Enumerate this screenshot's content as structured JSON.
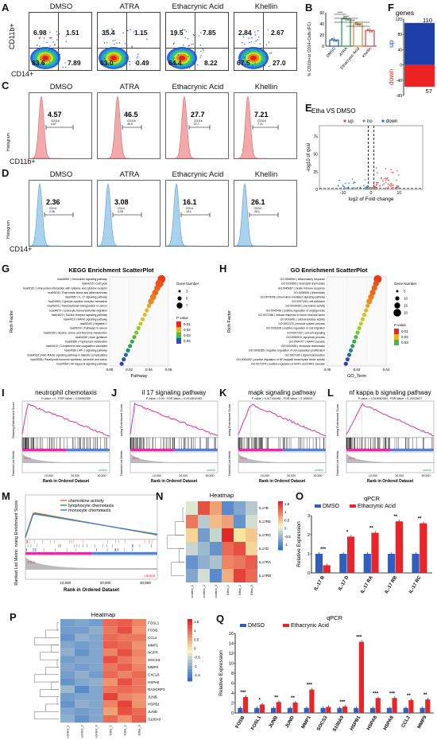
{
  "panel_labels": [
    "A",
    "B",
    "C",
    "D",
    "E",
    "F",
    "G",
    "H",
    "I",
    "J",
    "K",
    "L",
    "M",
    "N",
    "O",
    "P",
    "Q"
  ],
  "conditions": [
    "DMSO",
    "ATRA",
    "Ethacrynic Acid",
    "Khellin"
  ],
  "panelA": {
    "ylabel": "CD11b+",
    "xlabel": "CD14+",
    "quadrants": [
      {
        "q1": "6.98",
        "q2": "1.51",
        "q3": "7.89",
        "q4": "83.6"
      },
      {
        "q1": "35.4",
        "q2": "1.15",
        "q3": "0.49",
        "q4": "63.0"
      },
      {
        "q1": "19.5",
        "q2": "7.85",
        "q3": "8.22",
        "q4": "64.4"
      },
      {
        "q1": "2.84",
        "q2": "2.67",
        "q3": "27.0",
        "q4": "67.5"
      }
    ]
  },
  "panelB": {
    "ylabel": "% CD11b+or CD14+Cells (FC)",
    "ymax": "60",
    "yticks": [
      "0",
      "20",
      "40",
      "60"
    ],
    "sig": [
      "****",
      "****",
      "****",
      "****"
    ],
    "chart_data": {
      "type": "bar",
      "categories": [
        "DMSO",
        "ATRA",
        "Ethacrynic Acid",
        "Khellin"
      ],
      "values": [
        11,
        49,
        40,
        28
      ],
      "ylim": [
        0,
        60
      ],
      "colors": [
        "#2e62b5",
        "#2aa05a",
        "#d98a3a",
        "#d94f4f"
      ]
    }
  },
  "panelC": {
    "ylabel": "Histogram",
    "xlabel": "CD11b+",
    "values": [
      "4.57",
      "46.5",
      "27.7",
      "7.21"
    ],
    "gate_label": "CD11b",
    "color": "#f2a9a9"
  },
  "panelD": {
    "ylabel": "Histogram",
    "xlabel": "CD14+",
    "values": [
      "2.36",
      "3.08",
      "16.1",
      "26.1"
    ],
    "gate_label": "CD14",
    "color": "#a9d2ef"
  },
  "panelE": {
    "title": "Etha VS DMSO",
    "legend": [
      "up",
      "no",
      "down"
    ],
    "xlabel": "log2 of Fold change",
    "ylabel": "-log10 of qval",
    "xticks": [
      "-10",
      "0",
      "10"
    ],
    "yticks": [
      "0",
      "25",
      "50",
      "75"
    ]
  },
  "panelF": {
    "ylabel": "genes",
    "up_label": "up",
    "down_label": "down",
    "up_count": "110",
    "down_count": "57",
    "yticks": [
      "120",
      "80",
      "40",
      "0",
      "-40",
      "-80"
    ]
  },
  "panelG": {
    "title": "KEGG Enrichment ScatterPlot",
    "xlabel": "Pathway",
    "ylabel": "Rich Factor",
    "xticks": [
      "0.00",
      "0.02",
      "0.04",
      "0.06"
    ],
    "legend_size_title": "Gene Number",
    "legend_sizes": [
      "3",
      "5",
      "7"
    ],
    "legend_p_title": "P value",
    "legend_p": [
      "0.01",
      "0.02",
      "0.03",
      "0.04"
    ],
    "terms": [
      "hsa04062 | Chemokine signaling pathway",
      "hsa04215 | Cell cycle",
      "hsa05161 | Viral protein interaction with cytokine and cytokine receptor",
      "hsa05418 | Fluid shear stress and atherosclerosis",
      "hsa04657 | IL-17 signaling pathway",
      "hsa04060 | Cytokine-cytokine receptor interaction",
      "hsa05202 | Transcriptional misregulation in cancer",
      "hsa04670 | Leukocyte transendothelial migration",
      "hsa04620 | Toll-like receptor signaling pathway",
      "hsa04010 | MAPK signaling pathway",
      "hsa05160 | Hepatitis C",
      "hsa05200 | Pathways in cancer",
      "hsa00260 | Glycine, serine and threonine metabolism",
      "hsa04360 | Axon guidance",
      "hsa00380 | Tryptophan metabolism",
      "hsa04610 | Complement and coagulation cascades",
      "hsa04066 | HIF-1 signaling pathway",
      "hsa04933 | AGE-RAGE signaling pathway in diabetic complications",
      "hsa04928 | Parathyroid hormone synthesis, secretion and action",
      "hsa04064 | NF-kappa B signaling pathway"
    ]
  },
  "panelH": {
    "title": "GO Enrichment ScatterPlot",
    "xlabel": "GO_Term",
    "ylabel": "Rich Factor",
    "xticks": [
      "0.00",
      "0.02",
      "0.04"
    ],
    "legend_size_title": "Gene Number",
    "legend_sizes": [
      "5",
      "10",
      "15",
      "20"
    ],
    "legend_p_title": "P value",
    "legend_p": [
      "0.01",
      "0.02",
      "0.03"
    ],
    "terms": [
      "GO:0006954 | inflammatory response",
      "GO:0030593 | neutrophil chemotaxis",
      "GO:0045087 | innate immune response",
      "GO:0006935 | chemotaxis",
      "GO:0070098 | chemokine-mediated signaling pathway",
      "GO:0007155 | cell adhesion",
      "GO:0006935 | chemokine activity",
      "GO:0045766 | positive regulation of angiogenesis",
      "GO:0071356 | cellular response to tumor necrosis factor",
      "GO:0016491 | oxidoreductase activity",
      "GO:0002376 | immune system process",
      "GO:0030335 | positive regulation of cell migration",
      "GO:0007267 | cell-cell signaling",
      "GO:0006915 | apoptotic process",
      "GO:0004707 | MAPK cascade",
      "GO:0002548 | monocyte chemotaxis",
      "GO:0008285 | negative regulation of cell population proliferation",
      "GO:0007165 | signal transduction",
      "GO:0051092 | positive regulation of NF-kappaB transcription factor activity",
      "GO:0070374 | positive regulation of ERK1 and ERK2 cascade"
    ]
  },
  "gsea": [
    {
      "title": "neutrophil chemotaxis",
      "stats": "P value = 0 , FOR Value = 0.00060355"
    },
    {
      "title": "il 17 signaling pathway",
      "stats": "P value = 0.00 , FOR Value = 0.0014610162"
    },
    {
      "title": "mapk signaling pathway",
      "stats": "P value = 0.017441981 , FOR Value = 0.165623"
    },
    {
      "title": "nf kappa b signaling pathway",
      "stats": "P value = 0.018062354 , FOR Value = 0.14203627"
    }
  ],
  "gsea_labels": {
    "ylabel_top": "Running Enrichment Score",
    "ylabel_top_short": "nning Enrichment Score",
    "ylabel_bottom": "Ranked List Metric",
    "xlabel": "Rank in Ordered Dataset",
    "etha": "Etha",
    "control": "control",
    "xticks": [
      "10,000",
      "20,000",
      "30,000"
    ]
  },
  "panelM": {
    "legend": [
      "chemokine activity",
      "lymphocyte chemotaxis",
      "monocyte chemotaxis"
    ],
    "legend_colors": [
      "#e8734a",
      "#3aa04a",
      "#4b7fd1"
    ],
    "ylabel_top": "nning Enrichment Score",
    "ylabel_bottom": "Ranked List Metric",
    "xlabel": "Rank in Ordered Dataset",
    "xticks": [
      "10,000",
      "20,000",
      "30,000"
    ],
    "etha": "Etha",
    "control": "control"
  },
  "panelN": {
    "title": "Heatmap",
    "rows": [
      "IL17B",
      "IL17RE",
      "IL17RC",
      "IL17D",
      "IL17RA",
      "IL17RB"
    ],
    "cols": [
      "control_1",
      "control_2",
      "control_3",
      "Etha_1",
      "Etha_2",
      "Etha_3"
    ],
    "scale": [
      "1.5",
      "1",
      "0.5",
      "0",
      "-0.5",
      "-1"
    ],
    "chart_data": {
      "type": "heatmap",
      "rows": [
        "IL17B",
        "IL17RE",
        "IL17RC",
        "IL17D",
        "IL17RA",
        "IL17RB"
      ],
      "cols": [
        "control_1",
        "control_2",
        "control_3",
        "Etha_1",
        "Etha_2",
        "Etha_3"
      ],
      "values": [
        [
          -0.2,
          1.2,
          0.6,
          -1.2,
          -0.9,
          -0.5
        ],
        [
          0.9,
          -0.5,
          0.4,
          0.6,
          -1.1,
          -0.3
        ],
        [
          0.2,
          -1.0,
          -0.4,
          1.5,
          0.1,
          0.3
        ],
        [
          -0.4,
          -0.7,
          -1.1,
          1.0,
          1.2,
          0.2
        ],
        [
          -1.1,
          -0.8,
          -0.6,
          0.8,
          0.9,
          1.1
        ],
        [
          -0.9,
          -0.3,
          -1.2,
          0.5,
          1.3,
          1.0
        ]
      ]
    }
  },
  "panelO": {
    "title": "qPCR",
    "legend": [
      "DMSO",
      "Ethacrynic Acid"
    ],
    "ylabel": "Relative Expression",
    "yticks": [
      "0",
      "1",
      "2",
      "3"
    ],
    "sig": [
      "***",
      "*",
      "**",
      "**",
      "**"
    ],
    "chart_data": {
      "type": "bar",
      "categories": [
        "IL-17 B",
        "IL-17 D",
        "IL-17 RA",
        "IL-17 RB",
        "IL-17 RC"
      ],
      "series": [
        {
          "name": "DMSO",
          "values": [
            1.0,
            1.0,
            1.0,
            1.0,
            1.0
          ]
        },
        {
          "name": "Ethacrynic Acid",
          "values": [
            0.4,
            1.9,
            2.1,
            2.7,
            2.6
          ]
        }
      ],
      "ylim": [
        0,
        3
      ],
      "colors": [
        "#2e5fc0",
        "#e8262a"
      ]
    }
  },
  "panelP": {
    "title": "Heatmap",
    "rows": [
      "FOSL1",
      "FOSB",
      "CCL2",
      "MMP1",
      "NGFR",
      "SOCS3",
      "MMP9",
      "CXCL8",
      "HSPA8",
      "RASGRP3",
      "JUNB",
      "HSPB1",
      "JUND",
      "S100A9"
    ],
    "cols": [
      "control_1",
      "control_2",
      "control_3",
      "Etha_1",
      "Etha_2",
      "Etha_3"
    ],
    "scale": [
      "1.5",
      "1",
      "0.5",
      "0",
      "-0.5",
      "-1",
      "-1.5"
    ],
    "chart_data": {
      "type": "heatmap",
      "rows": [
        "FOSL1",
        "FOSB",
        "CCL2",
        "MMP1",
        "NGFR",
        "SOCS3",
        "MMP9",
        "CXCL8",
        "HSPA8",
        "RASGRP3",
        "JUNB",
        "HSPB1",
        "JUND",
        "S100A9"
      ],
      "cols": [
        "control_1",
        "control_2",
        "control_3",
        "Etha_1",
        "Etha_2",
        "Etha_3"
      ],
      "values": [
        [
          -1.0,
          -0.9,
          -1.0,
          1.0,
          1.1,
          0.8
        ],
        [
          -1.0,
          -1.0,
          -0.8,
          0.9,
          1.2,
          0.7
        ],
        [
          -1.1,
          -0.8,
          -0.9,
          1.0,
          0.9,
          0.9
        ],
        [
          -0.9,
          -1.0,
          -0.9,
          1.1,
          1.0,
          0.7
        ],
        [
          -0.8,
          -1.1,
          -0.9,
          0.8,
          1.2,
          0.8
        ],
        [
          -1.0,
          -0.9,
          -0.9,
          1.2,
          0.9,
          0.7
        ],
        [
          -0.9,
          -1.0,
          -0.9,
          0.9,
          1.1,
          0.8
        ],
        [
          -1.0,
          -0.8,
          -1.0,
          1.0,
          0.8,
          1.0
        ],
        [
          -1.1,
          -0.9,
          -0.8,
          0.7,
          1.2,
          0.9
        ],
        [
          -0.7,
          -1.2,
          -0.9,
          0.9,
          1.0,
          0.9
        ],
        [
          -1.0,
          -0.9,
          -0.9,
          1.3,
          0.8,
          0.7
        ],
        [
          -1.1,
          -0.8,
          -0.9,
          0.8,
          1.3,
          0.7
        ],
        [
          -0.9,
          -1.0,
          -0.9,
          0.6,
          1.2,
          1.0
        ],
        [
          -0.8,
          -1.1,
          -0.9,
          1.0,
          0.7,
          1.1
        ]
      ]
    }
  },
  "panelQ": {
    "title": "qPCR",
    "legend": [
      "DMSO",
      "Ethacrynic Acid"
    ],
    "ylabel": "Relative Expression",
    "yticks": [
      "0",
      "2",
      "4",
      "6",
      "8",
      "10",
      "12",
      "14",
      "16"
    ],
    "sig": [
      "***",
      "*",
      "**",
      "**",
      "***",
      "",
      "***",
      "***",
      "***",
      "***",
      "**",
      "**"
    ],
    "chart_data": {
      "type": "bar",
      "categories": [
        "FOSB",
        "FOSL1",
        "JUNB",
        "JUND",
        "MMP1",
        "SOCS3",
        "S100A9",
        "HSPB1",
        "HSPA8",
        "HSPA8",
        "CCL2",
        "MMP9"
      ],
      "series": [
        {
          "name": "DMSO",
          "values": [
            1,
            1,
            1,
            1,
            1,
            1,
            1,
            1,
            1,
            1,
            1,
            1
          ]
        },
        {
          "name": "Ethacrynic Acid",
          "values": [
            3.2,
            1.7,
            2.2,
            2.1,
            4.7,
            1.2,
            1.3,
            14.3,
            3.0,
            3.0,
            2.6,
            2.7
          ]
        }
      ],
      "ylim": [
        0,
        16
      ],
      "colors": [
        "#2e5fc0",
        "#e8262a"
      ]
    }
  }
}
